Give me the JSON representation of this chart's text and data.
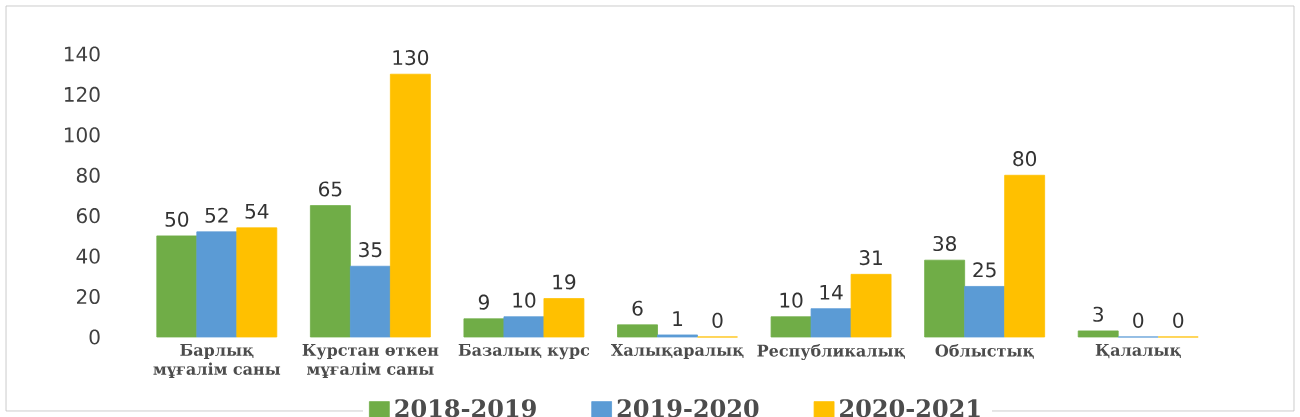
{
  "chart_data": {
    "type": "bar",
    "categories": [
      "Барлық мұғалім саны",
      "Курстан өткен мұғалім саны",
      "Базалық  курс",
      "Халықаралық",
      "Республикалық",
      "Облыстық",
      "Қалалық"
    ],
    "series": [
      {
        "name": "2018-2019",
        "color": "#70ad47",
        "values": [
          50,
          65,
          9,
          6,
          10,
          38,
          3
        ]
      },
      {
        "name": "2019-2020",
        "color": "#5b9bd5",
        "values": [
          52,
          35,
          10,
          1,
          14,
          25,
          0
        ]
      },
      {
        "name": "2020-2021",
        "color": "#ffc000",
        "values": [
          54,
          130,
          19,
          0,
          31,
          80,
          0
        ]
      }
    ],
    "ylim": [
      0,
      140
    ],
    "yticks": [
      0,
      20,
      40,
      60,
      80,
      100,
      120,
      140
    ],
    "data_labels": true,
    "legend": "bottom",
    "grid": false
  }
}
